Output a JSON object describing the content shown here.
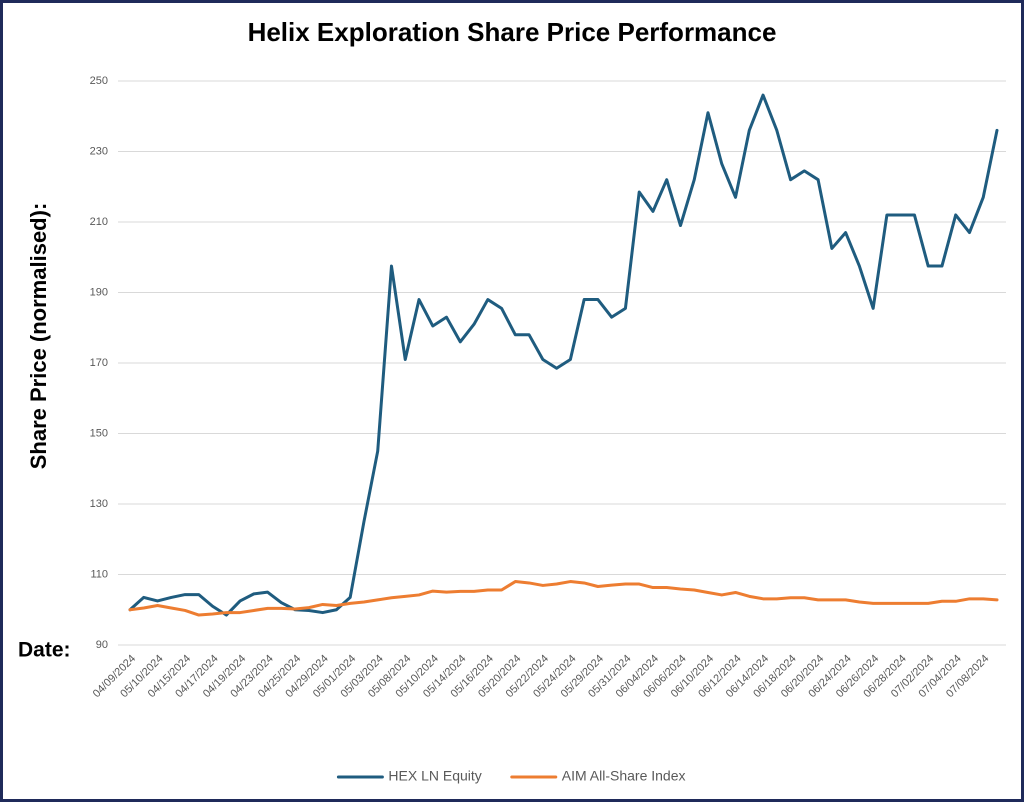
{
  "chart_data": {
    "type": "line",
    "title": "Helix Exploration Share Price Performance",
    "y_label": "Share Price (normalised):",
    "x_label": "Date:",
    "categories": [
      "04/09/2024",
      null,
      "05/10/2024",
      null,
      "04/15/2024",
      null,
      "04/17/2024",
      null,
      "04/19/2024",
      null,
      "04/23/2024",
      null,
      "04/25/2024",
      null,
      "04/29/2024",
      null,
      "05/01/2024",
      null,
      "05/03/2024",
      null,
      "05/08/2024",
      null,
      "05/10/2024",
      null,
      "05/14/2024",
      null,
      "05/16/2024",
      null,
      "05/20/2024",
      null,
      "05/22/2024",
      null,
      "05/24/2024",
      null,
      "05/29/2024",
      null,
      "05/31/2024",
      null,
      "06/04/2024",
      null,
      "06/06/2024",
      null,
      "06/10/2024",
      null,
      "06/12/2024",
      null,
      "06/14/2024",
      null,
      "06/18/2024",
      null,
      "06/20/2024",
      null,
      "06/24/2024",
      null,
      "06/26/2024",
      null,
      "06/28/2024",
      null,
      "07/02/2024",
      null,
      "07/04/2024",
      null,
      "07/08/2024",
      null
    ],
    "series": [
      {
        "name": "HEX LN Equity",
        "color": "#1f5c7f",
        "values": [
          100,
          103.5,
          102.5,
          103.5,
          104.3,
          104.3,
          101,
          98.5,
          102.5,
          104.5,
          105,
          102,
          100,
          99.8,
          99.2,
          100,
          103.5,
          125,
          145,
          197.5,
          171,
          188,
          180.5,
          183,
          176,
          181,
          188,
          185.5,
          178,
          178,
          171,
          168.5,
          171,
          188,
          188,
          183,
          185.5,
          218.5,
          213,
          222,
          209,
          222,
          241,
          226.5,
          217,
          236,
          246,
          236,
          222,
          224.5,
          222,
          202.5,
          207,
          197.5,
          185.5,
          212,
          212,
          212,
          197.5,
          197.5,
          212,
          207,
          217,
          236
        ]
      },
      {
        "name": "AIM All-Share Index",
        "color": "#ed7d31",
        "values": [
          100,
          100.5,
          101.2,
          100.5,
          99.8,
          98.5,
          98.8,
          99.2,
          99.2,
          99.8,
          100.4,
          100.4,
          100.2,
          100.6,
          101.5,
          101.2,
          101.8,
          102.2,
          102.8,
          103.4,
          103.8,
          104.2,
          105.3,
          105,
          105.2,
          105.2,
          105.6,
          105.6,
          108,
          107.6,
          106.9,
          107.3,
          108,
          107.6,
          106.6,
          107,
          107.3,
          107.3,
          106.3,
          106.3,
          105.9,
          105.6,
          104.9,
          104.2,
          104.9,
          103.8,
          103.1,
          103.1,
          103.4,
          103.4,
          102.8,
          102.8,
          102.8,
          102.2,
          101.8,
          101.8,
          101.8,
          101.8,
          101.8,
          102.4,
          102.4,
          103.1,
          103.1,
          102.8
        ]
      }
    ],
    "ylim": [
      90,
      250
    ],
    "yticks": [
      90,
      110,
      130,
      150,
      170,
      190,
      210,
      230,
      250
    ],
    "grid": true,
    "legend": "bottom"
  }
}
